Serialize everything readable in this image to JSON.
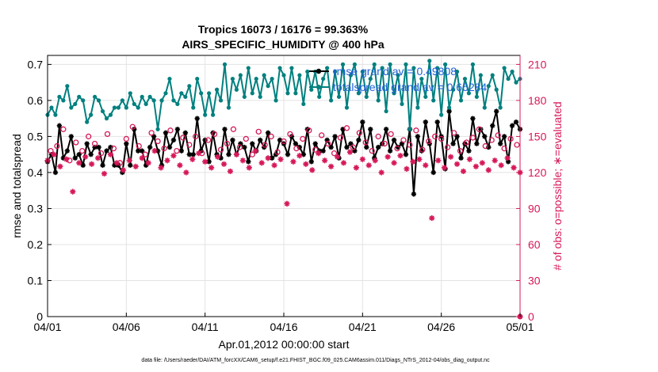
{
  "chart_data": {
    "type": "line",
    "title": "Tropics 16073 / 16176 = 99.363%",
    "subtitle": "AIRS_SPECIFIC_HUMIDITY @ 400 hPa",
    "xlabel": "Apr.01,2012 00:00:00 start",
    "ylabel": "rmse and totalspread",
    "ylabel_right": "# of obs: o=possible; ∗=evaluated",
    "x_ticks": [
      "04/01",
      "04/06",
      "04/11",
      "04/16",
      "04/21",
      "04/26",
      "05/01"
    ],
    "x_range_days": [
      0,
      30
    ],
    "y_ticks": [
      "0",
      "0.1",
      "0.2",
      "0.3",
      "0.4",
      "0.5",
      "0.6",
      "0.7"
    ],
    "ylim": [
      0,
      0.725
    ],
    "y_right_ticks": [
      "0",
      "30",
      "60",
      "90",
      "120",
      "150",
      "180",
      "210"
    ],
    "ylim_right": [
      0,
      217.5
    ],
    "grid": true,
    "legend": [
      {
        "name": "rmse",
        "label": "rmse grand av = 0.49808",
        "color": "#000000"
      },
      {
        "name": "totalspread",
        "label": "totalspread grand av = 0.66284",
        "color": "#00807f"
      }
    ],
    "series": [
      {
        "name": "rmse",
        "color": "#000000",
        "marker": "star",
        "x": [
          0,
          0.25,
          0.5,
          0.75,
          1,
          1.25,
          1.5,
          1.75,
          2,
          2.25,
          2.5,
          2.75,
          3,
          3.25,
          3.5,
          3.75,
          4,
          4.25,
          4.5,
          4.75,
          5,
          5.25,
          5.5,
          5.75,
          6,
          6.25,
          6.5,
          6.75,
          7,
          7.25,
          7.5,
          7.75,
          8,
          8.25,
          8.5,
          8.75,
          9,
          9.25,
          9.5,
          9.75,
          10,
          10.25,
          10.5,
          10.75,
          11,
          11.25,
          11.5,
          11.75,
          12,
          12.25,
          12.5,
          12.75,
          13,
          13.25,
          13.5,
          13.75,
          14,
          14.25,
          14.5,
          14.75,
          15,
          15.25,
          15.5,
          15.75,
          16,
          16.25,
          16.5,
          16.75,
          17,
          17.25,
          17.5,
          17.75,
          18,
          18.25,
          18.5,
          18.75,
          19,
          19.25,
          19.5,
          19.75,
          20,
          20.25,
          20.5,
          20.75,
          21,
          21.25,
          21.5,
          21.75,
          22,
          22.25,
          22.5,
          22.75,
          23,
          23.25,
          23.5,
          23.75,
          24,
          24.25,
          24.5,
          24.75,
          25,
          25.25,
          25.5,
          25.75,
          26,
          26.25,
          26.5,
          26.75,
          27,
          27.25,
          27.5,
          27.75,
          28,
          28.25,
          28.5,
          28.75,
          29,
          29.25,
          29.5,
          29.75,
          30
        ],
        "values": [
          0.43,
          0.45,
          0.4,
          0.53,
          0.44,
          0.46,
          0.5,
          0.44,
          0.45,
          0.42,
          0.48,
          0.45,
          0.47,
          0.47,
          0.42,
          0.46,
          0.47,
          0.42,
          0.42,
          0.4,
          0.48,
          0.42,
          0.52,
          0.46,
          0.46,
          0.42,
          0.47,
          0.5,
          0.46,
          0.42,
          0.51,
          0.47,
          0.49,
          0.52,
          0.46,
          0.51,
          0.45,
          0.45,
          0.55,
          0.46,
          0.49,
          0.43,
          0.51,
          0.45,
          0.44,
          0.52,
          0.45,
          0.49,
          0.45,
          0.48,
          0.47,
          0.43,
          0.48,
          0.46,
          0.49,
          0.47,
          0.51,
          0.44,
          0.45,
          0.49,
          0.48,
          0.45,
          0.5,
          0.48,
          0.47,
          0.45,
          0.52,
          0.43,
          0.48,
          0.46,
          0.46,
          0.49,
          0.47,
          0.5,
          0.44,
          0.52,
          0.47,
          0.48,
          0.46,
          0.49,
          0.54,
          0.47,
          0.52,
          0.44,
          0.47,
          0.48,
          0.52,
          0.46,
          0.49,
          0.47,
          0.48,
          0.45,
          0.52,
          0.34,
          0.5,
          0.46,
          0.54,
          0.48,
          0.4,
          0.54,
          0.5,
          0.41,
          0.57,
          0.48,
          0.5,
          0.44,
          0.48,
          0.46,
          0.55,
          0.48,
          0.52,
          0.5,
          0.47,
          0.53,
          0.57,
          0.48,
          0.5,
          0.43,
          0.53,
          0.54,
          0.52
        ]
      },
      {
        "name": "totalspread",
        "color": "#00807f",
        "marker": "dot",
        "x": [
          0,
          0.25,
          0.5,
          0.75,
          1,
          1.25,
          1.5,
          1.75,
          2,
          2.25,
          2.5,
          2.75,
          3,
          3.25,
          3.5,
          3.75,
          4,
          4.25,
          4.5,
          4.75,
          5,
          5.25,
          5.5,
          5.75,
          6,
          6.25,
          6.5,
          6.75,
          7,
          7.25,
          7.5,
          7.75,
          8,
          8.25,
          8.5,
          8.75,
          9,
          9.25,
          9.5,
          9.75,
          10,
          10.25,
          10.5,
          10.75,
          11,
          11.25,
          11.5,
          11.75,
          12,
          12.25,
          12.5,
          12.75,
          13,
          13.25,
          13.5,
          13.75,
          14,
          14.25,
          14.5,
          14.75,
          15,
          15.25,
          15.5,
          15.75,
          16,
          16.25,
          16.5,
          16.75,
          17,
          17.25,
          17.5,
          17.75,
          18,
          18.25,
          18.5,
          18.75,
          19,
          19.25,
          19.5,
          19.75,
          20,
          20.25,
          20.5,
          20.75,
          21,
          21.25,
          21.5,
          21.75,
          22,
          22.25,
          22.5,
          22.75,
          23,
          23.25,
          23.5,
          23.75,
          24,
          24.25,
          24.5,
          24.75,
          25,
          25.25,
          25.5,
          25.75,
          26,
          26.25,
          26.5,
          26.75,
          27,
          27.25,
          27.5,
          27.75,
          28,
          28.25,
          28.5,
          28.75,
          29,
          29.25,
          29.5,
          29.75,
          30
        ],
        "values": [
          0.56,
          0.58,
          0.56,
          0.61,
          0.6,
          0.64,
          0.58,
          0.59,
          0.61,
          0.6,
          0.54,
          0.56,
          0.61,
          0.6,
          0.57,
          0.55,
          0.56,
          0.58,
          0.58,
          0.6,
          0.58,
          0.62,
          0.59,
          0.58,
          0.61,
          0.59,
          0.61,
          0.6,
          0.52,
          0.6,
          0.62,
          0.66,
          0.6,
          0.59,
          0.62,
          0.61,
          0.64,
          0.58,
          0.66,
          0.62,
          0.56,
          0.62,
          0.56,
          0.63,
          0.6,
          0.7,
          0.58,
          0.66,
          0.63,
          0.67,
          0.61,
          0.69,
          0.62,
          0.66,
          0.61,
          0.67,
          0.64,
          0.66,
          0.6,
          0.69,
          0.67,
          0.62,
          0.69,
          0.62,
          0.67,
          0.59,
          0.68,
          0.63,
          0.68,
          0.61,
          0.66,
          0.69,
          0.6,
          0.68,
          0.61,
          0.7,
          0.58,
          0.67,
          0.7,
          0.62,
          0.68,
          0.61,
          0.66,
          0.7,
          0.6,
          0.69,
          0.57,
          0.7,
          0.62,
          0.67,
          0.59,
          0.7,
          0.52,
          0.69,
          0.58,
          0.66,
          0.61,
          0.71,
          0.6,
          0.69,
          0.56,
          0.7,
          0.58,
          0.63,
          0.68,
          0.6,
          0.66,
          0.62,
          0.7,
          0.61,
          0.67,
          0.58,
          0.64,
          0.67,
          0.63,
          0.58,
          0.69,
          0.66,
          0.68,
          0.65,
          0.66
        ]
      },
      {
        "name": "obs_possible",
        "color": "#d6185a",
        "marker": "circle",
        "axis": "right",
        "x": [
          0.2,
          0.6,
          1.0,
          1.4,
          1.8,
          2.2,
          2.6,
          3.0,
          3.4,
          3.8,
          4.2,
          4.6,
          5.0,
          5.4,
          5.8,
          6.2,
          6.6,
          7.0,
          7.4,
          7.8,
          8.2,
          8.6,
          9.0,
          9.4,
          9.8,
          10.2,
          10.6,
          11.0,
          11.4,
          11.8,
          12.2,
          12.6,
          13.0,
          13.4,
          13.8,
          14.2,
          14.6,
          15.0,
          15.4,
          15.8,
          16.2,
          16.6,
          17.0,
          17.4,
          17.8,
          18.2,
          18.6,
          19.0,
          19.4,
          19.8,
          20.2,
          20.6,
          21.0,
          21.4,
          21.8,
          22.2,
          22.6,
          23.0,
          23.4,
          23.8,
          24.2,
          24.6,
          25.0,
          25.4,
          25.8,
          26.2,
          26.6,
          27.0,
          27.4,
          27.8,
          28.2,
          28.6,
          29.0,
          29.4,
          29.8
        ],
        "values": [
          138,
          142,
          156,
          130,
          145,
          138,
          150,
          144,
          136,
          152,
          140,
          128,
          148,
          158,
          142,
          135,
          153,
          146,
          140,
          155,
          138,
          149,
          143,
          150,
          136,
          147,
          152,
          139,
          144,
          156,
          141,
          148,
          135,
          154,
          143,
          150,
          137,
          146,
          152,
          140,
          148,
          155,
          139,
          151,
          144,
          136,
          149,
          157,
          141,
          153,
          145,
          138,
          150,
          144,
          152,
          140,
          147,
          143,
          155,
          139,
          146,
          150,
          148,
          141,
          153,
          138,
          145,
          149,
          156,
          142,
          147,
          151,
          140,
          148,
          143
        ]
      },
      {
        "name": "obs_evaluated",
        "color": "#d6185a",
        "marker": "star",
        "axis": "right",
        "x": [
          0,
          0.4,
          0.8,
          1.2,
          1.6,
          2.0,
          2.4,
          2.8,
          3.2,
          3.6,
          4.0,
          4.4,
          4.8,
          5.2,
          5.6,
          6.0,
          6.4,
          6.8,
          7.2,
          7.6,
          8.0,
          8.4,
          8.8,
          9.2,
          9.6,
          10.0,
          10.4,
          10.8,
          11.2,
          11.6,
          12.0,
          12.4,
          12.8,
          13.2,
          13.6,
          14.0,
          14.4,
          14.8,
          15.2,
          15.6,
          16.0,
          16.4,
          16.8,
          17.2,
          17.6,
          18.0,
          18.4,
          18.8,
          19.2,
          19.6,
          20.0,
          20.4,
          20.8,
          21.2,
          21.6,
          22.0,
          22.4,
          22.8,
          23.2,
          23.6,
          24.0,
          24.4,
          24.8,
          25.2,
          25.6,
          26.0,
          26.4,
          26.8,
          27.2,
          27.6,
          28.0,
          28.4,
          28.8,
          29.2,
          29.6,
          30.0
        ],
        "values": [
          130,
          135,
          125,
          131,
          104,
          128,
          133,
          127,
          132,
          119,
          135,
          128,
          122,
          130,
          125,
          132,
          128,
          138,
          124,
          130,
          134,
          126,
          120,
          131,
          136,
          129,
          124,
          133,
          127,
          121,
          135,
          130,
          124,
          138,
          128,
          132,
          126,
          131,
          94,
          129,
          134,
          127,
          122,
          136,
          130,
          125,
          133,
          128,
          137,
          124,
          131,
          126,
          130,
          120,
          133,
          128,
          134,
          123,
          129,
          131,
          126,
          82,
          130,
          124,
          133,
          127,
          121,
          131,
          125,
          128,
          122,
          130,
          126,
          132,
          124,
          120
        ]
      }
    ],
    "footnote": "data file: /Users/raeder/DAI/ATM_forcXX/CAM6_setup/f.e21.FHIST_BGC.f09_025.CAM6assim.011/Diags_NTrS_2012-04/obs_diag_output.nc"
  }
}
